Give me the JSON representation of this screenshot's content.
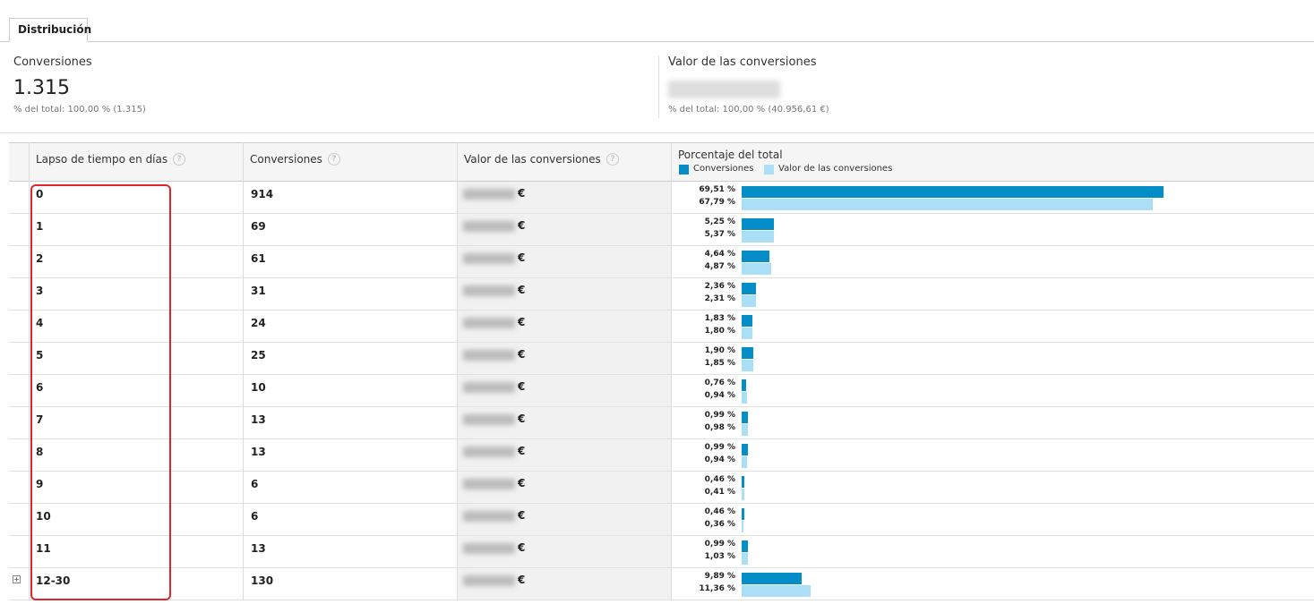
{
  "tab": "Distribución",
  "summary": [
    {
      "title": "Conversiones",
      "value": "1.315",
      "note": "% del total: 100,00 % (1.315)"
    },
    {
      "title": "Valor de las conversiones",
      "note": "% del total: 100,00 % (40.956,61 €)"
    }
  ],
  "table": {
    "headers": [
      "Lapso de tiempo en días",
      "Conversiones",
      "Valor de las conversiones",
      "Porcentaje del total"
    ],
    "legend": [
      {
        "name": "Conversiones",
        "color": "#058dc7"
      },
      {
        "name": "Valor de las conversiones",
        "color": "#aadff5"
      }
    ],
    "currency": "€",
    "rows": [
      {
        "label": "0",
        "conversions": 914,
        "conv_pct": {
          "value": 69.51,
          "label": "69,51 %"
        },
        "value_pct": {
          "value": 67.79,
          "label": "67,79 %"
        }
      },
      {
        "label": "1",
        "conversions": 69,
        "conv_pct": {
          "value": 5.25,
          "label": "5,25 %"
        },
        "value_pct": {
          "value": 5.37,
          "label": "5,37 %"
        }
      },
      {
        "label": "2",
        "conversions": 61,
        "conv_pct": {
          "value": 4.64,
          "label": "4,64 %"
        },
        "value_pct": {
          "value": 4.87,
          "label": "4,87 %"
        }
      },
      {
        "label": "3",
        "conversions": 31,
        "conv_pct": {
          "value": 2.36,
          "label": "2,36 %"
        },
        "value_pct": {
          "value": 2.31,
          "label": "2,31 %"
        }
      },
      {
        "label": "4",
        "conversions": 24,
        "conv_pct": {
          "value": 1.83,
          "label": "1,83 %"
        },
        "value_pct": {
          "value": 1.8,
          "label": "1,80 %"
        }
      },
      {
        "label": "5",
        "conversions": 25,
        "conv_pct": {
          "value": 1.9,
          "label": "1,90 %"
        },
        "value_pct": {
          "value": 1.85,
          "label": "1,85 %"
        }
      },
      {
        "label": "6",
        "conversions": 10,
        "conv_pct": {
          "value": 0.76,
          "label": "0,76 %"
        },
        "value_pct": {
          "value": 0.94,
          "label": "0,94 %"
        }
      },
      {
        "label": "7",
        "conversions": 13,
        "conv_pct": {
          "value": 0.99,
          "label": "0,99 %"
        },
        "value_pct": {
          "value": 0.98,
          "label": "0,98 %"
        }
      },
      {
        "label": "8",
        "conversions": 13,
        "conv_pct": {
          "value": 0.99,
          "label": "0,99 %"
        },
        "value_pct": {
          "value": 0.94,
          "label": "0,94 %"
        }
      },
      {
        "label": "9",
        "conversions": 6,
        "conv_pct": {
          "value": 0.46,
          "label": "0,46 %"
        },
        "value_pct": {
          "value": 0.41,
          "label": "0,41 %"
        }
      },
      {
        "label": "10",
        "conversions": 6,
        "conv_pct": {
          "value": 0.46,
          "label": "0,46 %"
        },
        "value_pct": {
          "value": 0.36,
          "label": "0,36 %"
        }
      },
      {
        "label": "11",
        "conversions": 13,
        "conv_pct": {
          "value": 0.99,
          "label": "0,99 %"
        },
        "value_pct": {
          "value": 1.03,
          "label": "1,03 %"
        }
      },
      {
        "label": "12-30",
        "conversions": 130,
        "conv_pct": {
          "value": 9.89,
          "label": "9,89 %"
        },
        "value_pct": {
          "value": 11.36,
          "label": "11,36 %"
        }
      }
    ]
  }
}
